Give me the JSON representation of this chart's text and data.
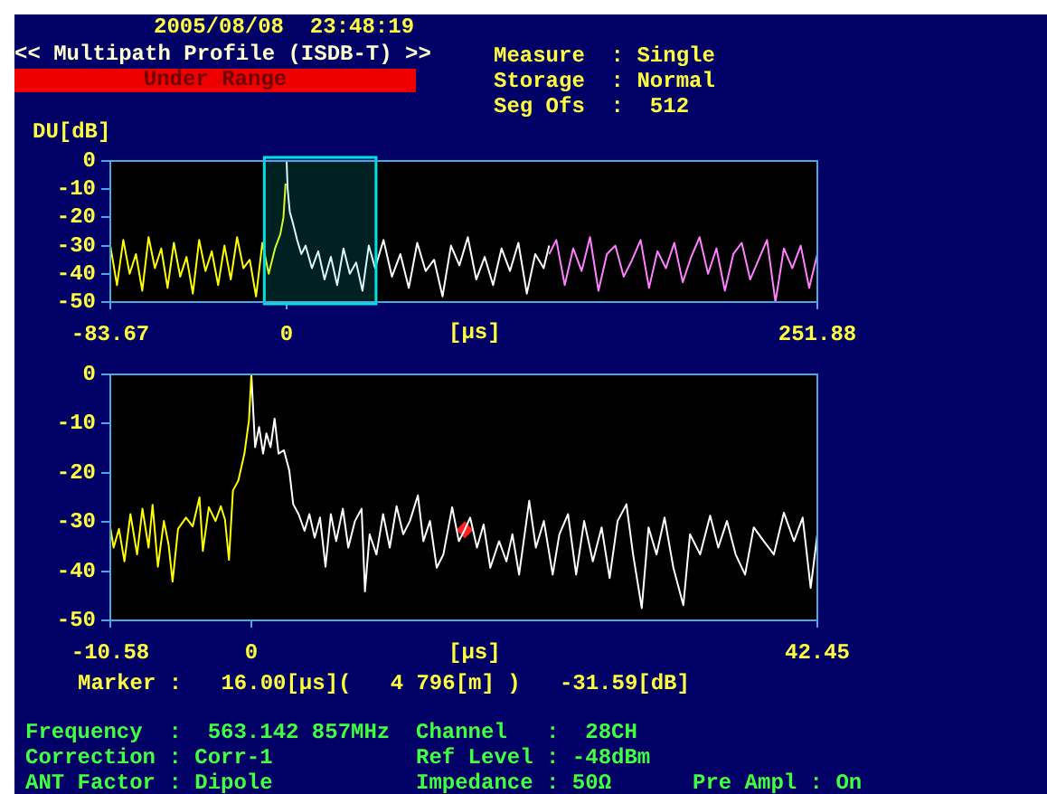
{
  "chart_data": [
    {
      "type": "line",
      "title": "<< Multipath Profile (ISDB-T) >>",
      "ylabel": "DU[dB]",
      "xlabel": "[μs]",
      "marker": "none",
      "xlim": [
        -83.67,
        251.88
      ],
      "xticks": [
        -83.67,
        0,
        251.88
      ],
      "ylim": [
        -50,
        0
      ],
      "yticks": [
        -50,
        -40,
        -30,
        -20,
        -10,
        0
      ],
      "series": [
        {
          "color": "#ffff00",
          "x": [
            -83.67,
            -80.5,
            -77.5,
            -74.5,
            -71.5,
            -68.5,
            -65.5,
            -62.5,
            -59.5,
            -56.5,
            -53.5,
            -50.5,
            -47.5,
            -44.5,
            -41.5,
            -38.5,
            -35.5,
            -32.5,
            -29.5,
            -26.5,
            -23.5,
            -20.5,
            -17.5,
            -14.5,
            -11.5,
            -8.5,
            -5.5,
            -3,
            -1.5,
            -0.5
          ],
          "values": [
            -30,
            -44,
            -28,
            -40,
            -33,
            -46,
            -27,
            -38,
            -31,
            -45,
            -29,
            -41,
            -34,
            -47,
            -28,
            -39,
            -32,
            -44,
            -30,
            -42,
            -27,
            -38,
            -35,
            -48,
            -29,
            -40,
            -31,
            -26,
            -20,
            -8
          ]
        },
        {
          "color": "#ffffff",
          "x": [
            0,
            0.5,
            1.5,
            3,
            5,
            7,
            9,
            12,
            15,
            18,
            21,
            24,
            27,
            30,
            33,
            36,
            39,
            42,
            46,
            50,
            54,
            58,
            62,
            66,
            70,
            74,
            78,
            82,
            86,
            90,
            94,
            98,
            102,
            106,
            110,
            114,
            118,
            122,
            124.6
          ],
          "values": [
            0,
            -10,
            -18,
            -22,
            -28,
            -33,
            -30,
            -38,
            -32,
            -42,
            -34,
            -44,
            -31,
            -40,
            -36,
            -46,
            -30,
            -38,
            -28,
            -41,
            -33,
            -45,
            -29,
            -39,
            -35,
            -48,
            -30,
            -37,
            -27,
            -42,
            -34,
            -44,
            -31,
            -39,
            -29,
            -47,
            -33,
            -38,
            -30
          ]
        },
        {
          "color": "#ff80ff",
          "x": [
            124.6,
            128,
            132,
            136,
            140,
            144,
            148,
            152,
            156,
            160,
            164,
            168,
            172,
            176,
            180,
            184,
            188,
            192,
            196,
            200,
            204,
            208,
            212,
            216,
            220,
            224,
            228,
            232,
            236,
            240,
            244,
            248,
            251.88
          ],
          "values": [
            -33,
            -28,
            -44,
            -31,
            -39,
            -27,
            -46,
            -33,
            -30,
            -41,
            -35,
            -28,
            -45,
            -32,
            -38,
            -29,
            -43,
            -34,
            -27,
            -40,
            -31,
            -46,
            -33,
            -29,
            -42,
            -35,
            -28,
            -50,
            -31,
            -38,
            -30,
            -45,
            -33
          ]
        }
      ],
      "bands": [
        {
          "axis": "x",
          "from": -10.58,
          "to": 42.45,
          "color": "#00e0e0"
        }
      ],
      "annotations": [
        "2005/08/08  23:48:19",
        "Under Range",
        "Measure  : Single",
        "Storage  : Normal",
        "Seg Ofs  :  512"
      ]
    },
    {
      "type": "line",
      "xlabel": "[μs]",
      "marker": "none",
      "xlim": [
        -10.58,
        42.45
      ],
      "xticks": [
        -10.58,
        0,
        42.45
      ],
      "ylim": [
        -50,
        0
      ],
      "yticks": [
        -50,
        -40,
        -30,
        -20,
        -10,
        0
      ],
      "series": [
        {
          "color": "#ffff00",
          "x": [
            -10.58,
            -10.33,
            -9.93,
            -9.52,
            -9.07,
            -8.57,
            -8.17,
            -7.71,
            -7.41,
            -7.01,
            -6.56,
            -6.21,
            -5.91,
            -5.5,
            -4.9,
            -4.4,
            -3.89,
            -3.64,
            -3.19,
            -2.69,
            -2.29,
            -1.98,
            -1.68,
            -1.38,
            -0.98,
            -0.52,
            -0.18,
            0
          ],
          "values": [
            -31.1,
            -35.2,
            -31.4,
            -38,
            -28.4,
            -36.6,
            -27.3,
            -35.2,
            -26.5,
            -39.1,
            -29.8,
            -34.6,
            -42.1,
            -31.4,
            -29.1,
            -30.9,
            -25,
            -35.9,
            -27,
            -29.8,
            -26.8,
            -29.5,
            -37.7,
            -23.6,
            -21.6,
            -16.1,
            -9.3,
            0
          ]
        },
        {
          "color": "#ffffff",
          "x": [
            0,
            0.28,
            0.58,
            0.88,
            1.13,
            1.44,
            1.74,
            2.04,
            2.44,
            2.84,
            3.14,
            3.54,
            3.99,
            4.35,
            4.75,
            5.15,
            5.56,
            5.96,
            6.36,
            6.86,
            7.27,
            7.77,
            8.27,
            8.52,
            8.87,
            9.38,
            9.88,
            10.38,
            10.89,
            11.39,
            11.89,
            12.49,
            12.9,
            13.4,
            13.9,
            14.4,
            15.06,
            15.56,
            16,
            16.41,
            16.92,
            17.42,
            17.92,
            18.58,
            19.13,
            19.58,
            20.08,
            20.84,
            21.34,
            21.94,
            22.6,
            23.1,
            23.75,
            24.36,
            24.96,
            25.61,
            26.27,
            26.87,
            27.47,
            28.13,
            28.63,
            29.28,
            29.79,
            30.39,
            30.99,
            31.65,
            32.4,
            32.9,
            33.66,
            34.41,
            35.02,
            35.67,
            36.32,
            37.03,
            37.68,
            38.43,
            39.19,
            39.94,
            40.7,
            41.35,
            41.95,
            42.45
          ],
          "values": [
            0,
            -14.8,
            -10.7,
            -16.1,
            -12,
            -14.8,
            -9,
            -16.1,
            -15.4,
            -19.5,
            -26.4,
            -28.4,
            -31.8,
            -28.4,
            -33.2,
            -29.1,
            -39.1,
            -28.4,
            -33.9,
            -27.3,
            -35.2,
            -29.8,
            -27.3,
            -44.1,
            -32.5,
            -36.6,
            -28.4,
            -35.2,
            -26.8,
            -32.5,
            -29.8,
            -24.6,
            -33.9,
            -29.8,
            -39.3,
            -36.6,
            -27,
            -33.9,
            -31.6,
            -29.1,
            -35.2,
            -30.5,
            -39.3,
            -33.9,
            -38,
            -32.5,
            -40.7,
            -25.7,
            -35.2,
            -29.8,
            -40.7,
            -32.5,
            -28.4,
            -40.7,
            -29.8,
            -38,
            -31.1,
            -41.4,
            -29.8,
            -26.4,
            -36.6,
            -47.5,
            -31.1,
            -36.6,
            -29.1,
            -39.3,
            -46.9,
            -32.5,
            -36.6,
            -28.7,
            -35.2,
            -29.8,
            -36.6,
            -40.7,
            -31.1,
            -33.9,
            -36.6,
            -28.1,
            -33.9,
            -29.1,
            -43.4,
            -32.5
          ]
        },
        {
          "type": "scatter",
          "color": "#ff2020",
          "marker": "diamond",
          "x": [
            16
          ],
          "values": [
            -31.6
          ]
        }
      ],
      "annotations": [
        "Marker :   16.00[μs](   4 796[m] )   -31.59[dB]",
        "Frequency  :  563.142 857MHz",
        "Channel   :  28CH",
        "Correction : Corr-1",
        "Ref Level : -48dBm",
        "ANT Factor : Dipole",
        "Impedance : 50Ω",
        "Pre Ampl : On"
      ]
    }
  ]
}
